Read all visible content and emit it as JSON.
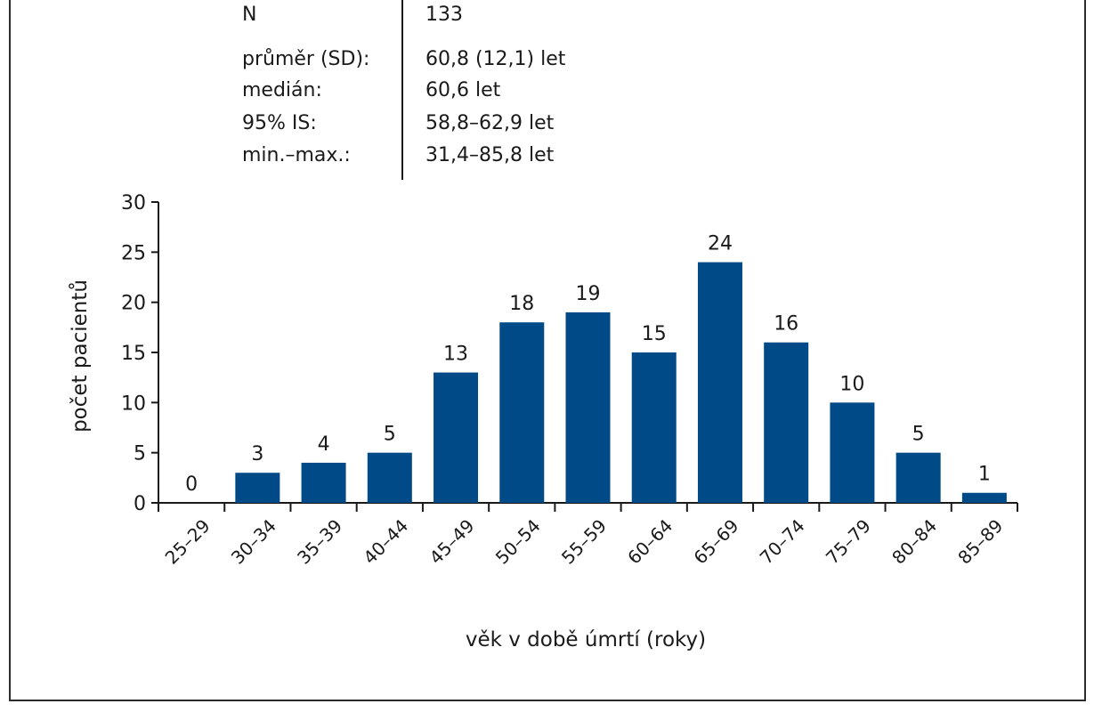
{
  "stats": [
    {
      "label": "N",
      "value": "133"
    },
    {
      "label": "průměr (SD):",
      "value": "60,8 (12,1) let"
    },
    {
      "label": "medián:",
      "value": "60,6 let"
    },
    {
      "label": "95% IS:",
      "value": "58,8–62,9 let"
    },
    {
      "label": "min.–max.:",
      "value": "31,4–85,8 let"
    }
  ],
  "chart_data": {
    "type": "bar",
    "categories": [
      "25–29",
      "30–34",
      "35–39",
      "40–44",
      "45–49",
      "50–54",
      "55–59",
      "60–64",
      "65–69",
      "70–74",
      "75–79",
      "80–84",
      "85–89"
    ],
    "values": [
      0,
      3,
      4,
      5,
      13,
      18,
      19,
      15,
      24,
      16,
      10,
      5,
      1
    ],
    "xlabel": "věk v době úmrtí (roky)",
    "ylabel": "počet pacientů",
    "ylim": [
      0,
      30
    ],
    "yticks": [
      0,
      5,
      10,
      15,
      20,
      25,
      30
    ],
    "grid": false,
    "bar_color": "#004a87",
    "data_labels": true
  }
}
